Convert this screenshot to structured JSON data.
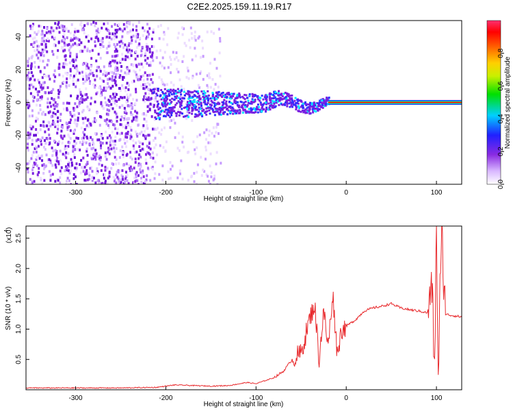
{
  "title": "C2E2.2025.159.11.19.R17",
  "chart_data": [
    {
      "type": "heatmap",
      "title": "C2E2.2025.159.11.19.R17",
      "xlabel": "Height of straight line (km)",
      "ylabel": "Frequency (Hz)",
      "xlim": [
        -355,
        128
      ],
      "ylim": [
        -50,
        50
      ],
      "x_ticks": [
        "-300",
        "-200",
        "-100",
        "0",
        "100"
      ],
      "y_ticks": [
        "-40",
        "-20",
        "0",
        "20",
        "40"
      ],
      "colorbar": {
        "label": "Normalized spectral amplitude",
        "range": [
          0,
          1
        ],
        "ticks": [
          "0.0",
          "0.2",
          "0.4",
          "0.6",
          "0.8"
        ],
        "colormap": "rainbow (white-violet-blue-cyan-green-yellow-orange-red-magenta)"
      },
      "description_features": {
        "dominant_frequency_hz": 0,
        "left_noise_region_km": [
          -355,
          -215
        ],
        "strong_signal_region_km": [
          -20,
          128
        ],
        "colors": {
          "low": "#8a2be2",
          "mid": "#00e5ff",
          "high": "#ff0000"
        }
      }
    },
    {
      "type": "line",
      "xlabel": "Height of straight line (km)",
      "ylabel": "SNR (10 * v/v)",
      "y_multiplier_label": "(x10",
      "y_multiplier_exp": "4",
      "xlim": [
        -355,
        128
      ],
      "ylim": [
        0,
        2.7
      ],
      "x_ticks": [
        "-300",
        "-200",
        "-100",
        "0",
        "100"
      ],
      "y_ticks": [
        "0.5",
        "1.0",
        "1.5",
        "2.0",
        "2.5"
      ],
      "line_color": "#e8292c",
      "series": [
        {
          "x": [
            -355,
            -300,
            -250,
            -210,
            -190,
            -170,
            -150,
            -130,
            -110,
            -100,
            -90,
            -80,
            -70,
            -60,
            -50,
            -45,
            -40,
            -35,
            -30,
            -25,
            -20,
            -15,
            -10,
            -5,
            0,
            10,
            20,
            30,
            40,
            50,
            60,
            70,
            80,
            90,
            95,
            98,
            100,
            102,
            104,
            106,
            110,
            115,
            120,
            128
          ],
          "y": [
            0.03,
            0.03,
            0.03,
            0.04,
            0.08,
            0.07,
            0.06,
            0.07,
            0.12,
            0.1,
            0.15,
            0.2,
            0.3,
            0.5,
            0.6,
            0.9,
            1.2,
            1.4,
            0.5,
            1.3,
            0.7,
            1.6,
            0.6,
            1.0,
            1.05,
            1.15,
            1.3,
            1.35,
            1.38,
            1.42,
            1.35,
            1.32,
            1.3,
            1.27,
            1.7,
            0.3,
            2.7,
            0.2,
            1.6,
            2.5,
            1.25,
            1.23,
            1.22,
            1.2
          ]
        }
      ]
    }
  ]
}
